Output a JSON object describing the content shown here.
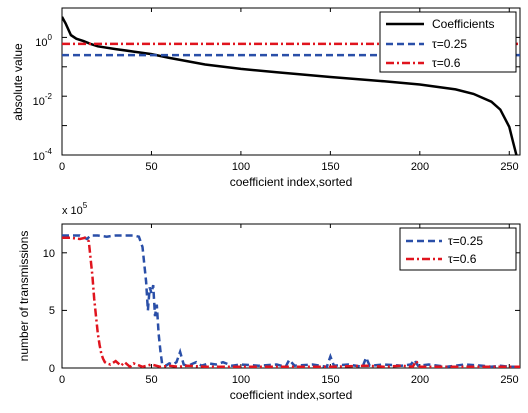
{
  "chart_data": [
    {
      "type": "line",
      "xlabel": "coefficient index,sorted",
      "ylabel": "absolute value",
      "xlim": [
        0,
        256
      ],
      "ylim_log10": [
        -4,
        1
      ],
      "yscale": "log",
      "grid": false,
      "legend_position": "top-right",
      "xticks": [
        "0",
        "50",
        "100",
        "150",
        "200",
        "250"
      ],
      "yticks": [
        {
          "base": "10",
          "exp": "-4",
          "value": 0.0001
        },
        {
          "base": "10",
          "exp": "-2",
          "value": 0.01
        },
        {
          "base": "10",
          "exp": "0",
          "value": 1
        }
      ],
      "series": [
        {
          "name": "Coefficients",
          "color": "#000000",
          "style": "solid",
          "x": [
            0,
            2,
            5,
            8,
            12,
            16,
            20,
            30,
            40,
            50,
            60,
            80,
            100,
            120,
            150,
            180,
            200,
            220,
            230,
            240,
            245,
            250,
            252,
            254,
            256
          ],
          "y": [
            5,
            3,
            1.2,
            0.9,
            0.75,
            0.6,
            0.5,
            0.4,
            0.33,
            0.27,
            0.2,
            0.12,
            0.085,
            0.065,
            0.045,
            0.032,
            0.025,
            0.017,
            0.012,
            0.0065,
            0.0035,
            0.0009,
            0.0003,
            0.0001,
            8e-05
          ]
        },
        {
          "name": "τ=0.25",
          "color": "#2a4fa8",
          "style": "dashed",
          "x": [
            0,
            256
          ],
          "y": [
            0.25,
            0.25
          ]
        },
        {
          "name": "τ=0.6",
          "color": "#e0141e",
          "style": "dashdot",
          "x": [
            0,
            256
          ],
          "y": [
            0.6,
            0.6
          ]
        }
      ]
    },
    {
      "type": "line",
      "xlabel": "coefficient index,sorted",
      "ylabel": "number of transmissions",
      "y_multiplier": "x 10",
      "y_multiplier_exp": "5",
      "xlim": [
        0,
        256
      ],
      "ylim": [
        0,
        12.5
      ],
      "grid": false,
      "legend_position": "top-right",
      "xticks": [
        "0",
        "50",
        "100",
        "150",
        "200",
        "250"
      ],
      "yticks": [
        "0",
        "5",
        "10"
      ],
      "series": [
        {
          "name": "τ=0.25",
          "color": "#2a4fa8",
          "style": "dashed",
          "x": [
            0,
            5,
            10,
            14,
            16,
            20,
            25,
            30,
            35,
            40,
            43,
            45,
            46,
            47,
            48,
            49,
            50,
            51,
            52,
            53,
            54,
            55,
            56,
            58,
            60,
            62,
            64,
            66,
            68,
            70,
            72,
            75,
            78,
            82,
            86,
            90,
            95,
            100,
            110,
            120,
            125,
            127,
            130,
            140,
            148,
            150,
            152,
            160,
            168,
            170,
            172,
            180,
            190,
            195,
            197,
            199,
            205,
            215,
            225,
            235,
            240,
            245,
            250,
            256
          ],
          "y": [
            11.5,
            11.5,
            11.5,
            11.2,
            11.5,
            11.5,
            11.4,
            11.5,
            11.5,
            11.5,
            11.4,
            10.5,
            9.0,
            7.5,
            5.0,
            7.0,
            6.5,
            7.2,
            4.5,
            5.5,
            3.0,
            1.5,
            0.3,
            0.2,
            0.4,
            0.3,
            0.5,
            1.4,
            0.3,
            0.2,
            0.3,
            0.5,
            0.2,
            0.4,
            0.3,
            0.5,
            0.2,
            0.3,
            0.2,
            0.3,
            0.1,
            0.7,
            0.2,
            0.3,
            0.1,
            1.0,
            0.2,
            0.3,
            0.1,
            0.9,
            0.2,
            0.3,
            0.2,
            0.3,
            0.7,
            0.2,
            0.3,
            0.1,
            0.3,
            0.2,
            0.1,
            0.2,
            0.1,
            0.1
          ]
        },
        {
          "name": "τ=0.6",
          "color": "#e0141e",
          "style": "dashdot",
          "x": [
            0,
            5,
            10,
            13,
            15,
            16,
            17,
            18,
            19,
            20,
            21,
            22,
            23,
            24,
            25,
            27,
            30,
            33,
            35,
            38,
            40,
            45,
            50,
            55,
            60,
            65,
            70,
            80,
            90,
            100,
            120,
            150,
            170,
            180,
            190,
            196,
            198,
            200,
            210,
            230,
            250,
            256
          ],
          "y": [
            11.3,
            11.3,
            11.2,
            11.3,
            11.0,
            9.5,
            8.0,
            6.0,
            4.5,
            3.0,
            2.0,
            1.2,
            0.8,
            0.5,
            0.4,
            0.3,
            0.6,
            0.2,
            0.5,
            0.1,
            0.4,
            0.1,
            0.3,
            0.1,
            0.2,
            0.1,
            0.2,
            0.1,
            0.1,
            0.1,
            0.1,
            0.1,
            0.2,
            0.1,
            0.2,
            0.1,
            0.6,
            0.1,
            0.1,
            0.1,
            0.1,
            0.1
          ]
        }
      ]
    }
  ]
}
